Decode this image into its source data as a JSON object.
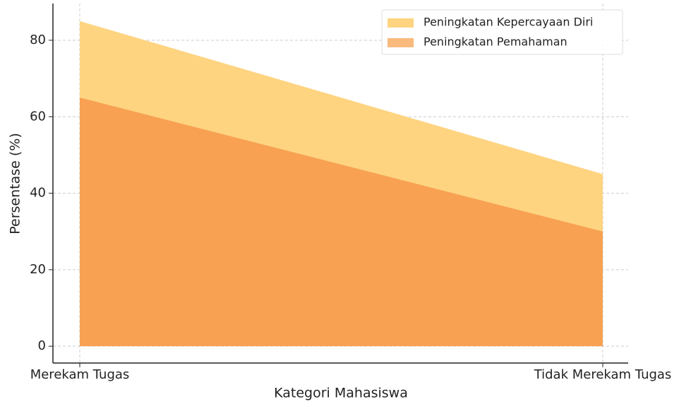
{
  "chart_data": {
    "type": "area",
    "xlabel": "Kategori Mahasiswa",
    "ylabel": "Persentase (%)",
    "categories": [
      "Merekam Tugas",
      "Tidak Merekam Tugas"
    ],
    "series": [
      {
        "name": "Peningkatan Kepercayaan Diri",
        "color": "#fed481",
        "values": [
          85,
          45
        ]
      },
      {
        "name": "Peningkatan Pemahaman",
        "color": "#f8a152",
        "values": [
          65,
          30
        ]
      }
    ],
    "ylim": [
      -4.4,
      89.6
    ],
    "yticks": [
      0,
      20,
      40,
      60,
      80
    ],
    "grid": true,
    "legend": "upper right"
  }
}
